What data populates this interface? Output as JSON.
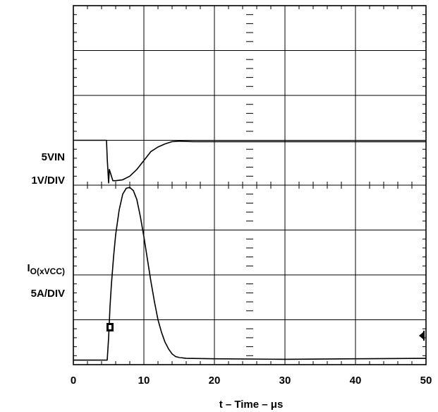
{
  "chart_data": {
    "type": "line",
    "title": "",
    "xlabel": "t – Time – μs",
    "xlim": [
      0,
      50
    ],
    "x_ticks": [
      0,
      10,
      20,
      30,
      40,
      50
    ],
    "x_tick_labels": [
      "0",
      "10",
      "20",
      "30",
      "40",
      "50"
    ],
    "grid": true,
    "grid_divisions": {
      "x": 5,
      "y": 8
    },
    "channel_labels": [
      {
        "name": "5VIN",
        "scale": "1V/DIV"
      },
      {
        "name_main": "I",
        "name_sub": "O(xVCC)",
        "scale": "5A/DIV"
      }
    ],
    "ground_markers": [
      "left-marker-channel-2",
      "right-arrow-marker"
    ],
    "series": [
      {
        "y_units": "divisions",
        "x": [
          0,
          4.7,
          4.8,
          5.0,
          5.1,
          5.3,
          5.6,
          6.0,
          7.0,
          8.0,
          9.0,
          10.0,
          11.0,
          12.0,
          13.0,
          14.0,
          15.0,
          17.0,
          20.0,
          30.0,
          40.0,
          50.0
        ],
        "values": [
          5.0,
          5.0,
          4.6,
          4.05,
          4.35,
          4.25,
          4.1,
          4.1,
          4.12,
          4.2,
          4.35,
          4.55,
          4.75,
          4.85,
          4.92,
          4.97,
          4.98,
          4.97,
          4.97,
          4.97,
          4.97,
          4.97
        ]
      },
      {
        "y_units": "divisions",
        "x": [
          0,
          4.8,
          5.0,
          5.2,
          5.4,
          5.7,
          6.0,
          6.5,
          7.0,
          7.5,
          8.0,
          8.5,
          9.0,
          9.5,
          10.0,
          10.5,
          11.0,
          11.5,
          12.0,
          12.5,
          13.0,
          13.5,
          14.0,
          14.5,
          15.0,
          16.0,
          20.0,
          30.0,
          40.0,
          50.0
        ],
        "values": [
          0.1,
          0.1,
          0.6,
          1.3,
          1.8,
          2.4,
          2.9,
          3.45,
          3.8,
          3.93,
          3.95,
          3.88,
          3.68,
          3.3,
          2.85,
          2.35,
          1.85,
          1.4,
          1.0,
          0.72,
          0.5,
          0.35,
          0.24,
          0.18,
          0.16,
          0.14,
          0.13,
          0.12,
          0.13,
          0.14
        ]
      }
    ]
  }
}
